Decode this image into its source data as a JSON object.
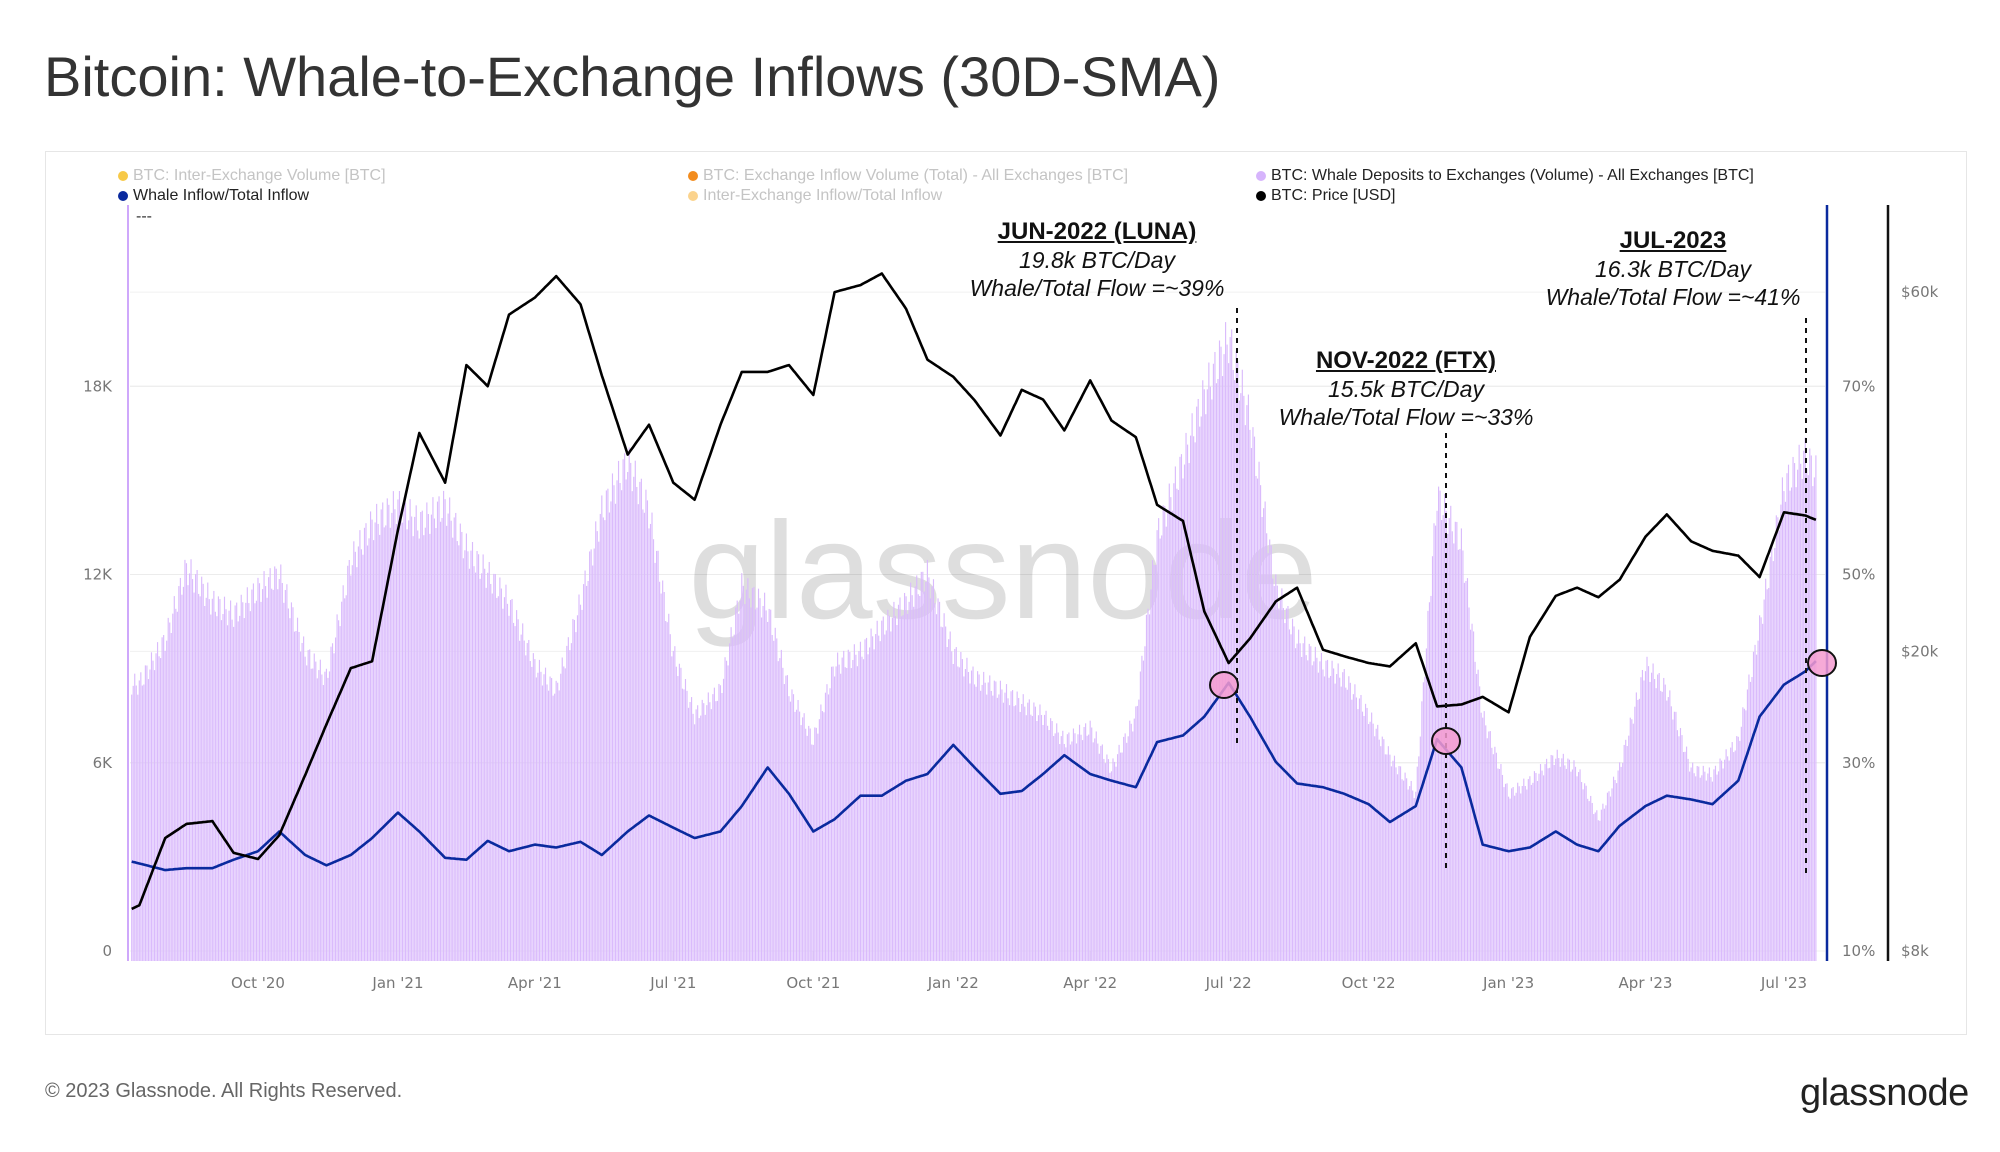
{
  "title": "Bitcoin: Whale-to-Exchange Inflows (30D-SMA)",
  "legend": [
    {
      "label": "BTC: Inter-Exchange Volume [BTC]",
      "color": "#f7c948",
      "active": false
    },
    {
      "label": "BTC: Exchange Inflow Volume (Total) - All Exchanges [BTC]",
      "color": "#f28c1e",
      "active": false
    },
    {
      "label": "BTC: Whale Deposits to Exchanges (Volume) - All Exchanges [BTC]",
      "color": "#d6b4fc",
      "active": true
    },
    {
      "label": "Whale Inflow/Total Inflow",
      "color": "#0a2a9e",
      "active": true
    },
    {
      "label": "Inter-Exchange Inflow/Total Inflow",
      "color": "#fbd38d",
      "active": false
    },
    {
      "label": "BTC: Price [USD]",
      "color": "#000000",
      "active": true
    }
  ],
  "legend_placeholder": "---",
  "watermark": "glassnode",
  "footer": "© 2023 Glassnode. All Rights Reserved.",
  "logo": "glassnode",
  "annotations": [
    {
      "heading": "JUN-2022 (LUNA)",
      "line1": "19.8k BTC/Day",
      "line2": "Whale/Total Flow =~39%"
    },
    {
      "heading": "NOV-2022 (FTX)",
      "line1": "15.5k BTC/Day",
      "line2": "Whale/Total Flow =~33%"
    },
    {
      "heading": "JUL-2023",
      "line1": "16.3k BTC/Day",
      "line2": "Whale/Total Flow =~41%"
    }
  ],
  "chart_data": {
    "type": "bar+line",
    "grid": true,
    "legend_position": "top",
    "x_tick_labels": [
      "Oct '20",
      "Jan '21",
      "Apr '21",
      "Jul '21",
      "Oct '21",
      "Jan '22",
      "Apr '22",
      "Jul '22",
      "Oct '22",
      "Jan '23",
      "Apr '23",
      "Jul '23"
    ],
    "y_left": {
      "ticks": [
        "0",
        "6K",
        "12K",
        "18K"
      ],
      "tick_values": [
        0,
        6000,
        12000,
        18000
      ],
      "range": [
        0,
        24000
      ]
    },
    "y_right_pct": {
      "ticks": [
        "10%",
        "30%",
        "50%",
        "70%"
      ],
      "tick_values": [
        10,
        30,
        50,
        70
      ],
      "range": [
        10,
        90
      ]
    },
    "y_right_price": {
      "ticks": [
        "$8k",
        "$20k",
        "$60k"
      ],
      "tick_values": [
        8000,
        20000,
        60000
      ],
      "range": [
        8000,
        80000
      ],
      "scale": "log"
    },
    "dates": [
      "2020-07-10",
      "2020-07-15",
      "2020-08-01",
      "2020-08-15",
      "2020-09-01",
      "2020-09-15",
      "2020-10-01",
      "2020-10-15",
      "2020-11-01",
      "2020-11-15",
      "2020-12-01",
      "2020-12-15",
      "2021-01-01",
      "2021-01-15",
      "2021-02-01",
      "2021-02-15",
      "2021-03-01",
      "2021-03-15",
      "2021-04-01",
      "2021-04-15",
      "2021-05-01",
      "2021-05-15",
      "2021-06-01",
      "2021-06-15",
      "2021-07-01",
      "2021-07-15",
      "2021-08-01",
      "2021-08-15",
      "2021-09-01",
      "2021-09-15",
      "2021-10-01",
      "2021-10-15",
      "2021-11-01",
      "2021-11-15",
      "2021-12-01",
      "2021-12-15",
      "2022-01-01",
      "2022-01-15",
      "2022-02-01",
      "2022-02-15",
      "2022-03-01",
      "2022-03-15",
      "2022-04-01",
      "2022-04-15",
      "2022-05-01",
      "2022-05-15",
      "2022-06-01",
      "2022-06-15",
      "2022-07-01",
      "2022-07-15",
      "2022-08-01",
      "2022-08-15",
      "2022-09-01",
      "2022-09-15",
      "2022-10-01",
      "2022-10-15",
      "2022-11-01",
      "2022-11-15",
      "2022-12-01",
      "2022-12-15",
      "2023-01-01",
      "2023-01-15",
      "2023-02-01",
      "2023-02-15",
      "2023-03-01",
      "2023-03-15",
      "2023-04-01",
      "2023-04-15",
      "2023-05-01",
      "2023-05-15",
      "2023-06-01",
      "2023-06-15",
      "2023-07-01",
      "2023-07-15",
      "2023-07-22"
    ],
    "series": [
      {
        "name": "BTC: Whale Deposits to Exchanges (Volume) - All Exchanges [BTC]",
        "type": "bar",
        "axis": "left",
        "color": "#dabbfc",
        "values": [
          8500,
          8500,
          9900,
          12200,
          11100,
          10700,
          11500,
          12000,
          9500,
          8700,
          12400,
          13600,
          14200,
          13600,
          14200,
          12800,
          12000,
          11100,
          9100,
          8300,
          11100,
          14000,
          15600,
          14000,
          9500,
          7500,
          8300,
          11600,
          10900,
          8300,
          6700,
          9100,
          9500,
          10300,
          11100,
          12000,
          9500,
          8700,
          8300,
          7900,
          7500,
          6700,
          7100,
          5800,
          7500,
          13200,
          15600,
          17700,
          19500,
          16900,
          11600,
          9900,
          9100,
          8700,
          7500,
          6200,
          5000,
          14500,
          13000,
          7500,
          5000,
          5400,
          6200,
          5800,
          4200,
          5800,
          9100,
          8300,
          5800,
          5600,
          6700,
          10300,
          14800,
          15800,
          15200
        ]
      },
      {
        "name": "Whale Inflow/Total Inflow",
        "type": "line",
        "axis": "pct",
        "color": "#0a2a9e",
        "values": [
          19.5,
          19.3,
          18.6,
          18.8,
          18.8,
          19.7,
          20.6,
          22.7,
          20.2,
          19.1,
          20.2,
          22.0,
          24.7,
          22.7,
          19.9,
          19.7,
          21.7,
          20.6,
          21.3,
          21.0,
          21.6,
          20.2,
          22.7,
          24.4,
          23.1,
          22.0,
          22.7,
          25.4,
          29.5,
          26.7,
          22.7,
          24.0,
          26.5,
          26.5,
          28.1,
          28.8,
          31.9,
          29.5,
          26.7,
          27.0,
          28.8,
          30.8,
          28.8,
          28.1,
          27.4,
          32.2,
          32.9,
          34.9,
          38.5,
          34.9,
          30.1,
          27.8,
          27.4,
          26.7,
          25.6,
          23.7,
          25.4,
          32.5,
          29.5,
          21.3,
          20.6,
          21.0,
          22.7,
          21.3,
          20.6,
          23.3,
          25.4,
          26.5,
          26.1,
          25.6,
          28.1,
          34.9,
          38.3,
          39.7,
          40.8
        ]
      },
      {
        "name": "BTC: Price [USD]",
        "type": "line",
        "axis": "price",
        "color": "#000000",
        "values": [
          9100,
          9200,
          11300,
          11800,
          11900,
          10800,
          10600,
          11400,
          13700,
          16000,
          19000,
          19400,
          29000,
          39000,
          33500,
          48000,
          45000,
          56000,
          59000,
          63000,
          57800,
          46500,
          36500,
          40000,
          33500,
          31800,
          40000,
          47000,
          47000,
          48000,
          43800,
          60000,
          61300,
          63500,
          57000,
          48800,
          46300,
          43100,
          38700,
          44500,
          43200,
          39300,
          45800,
          40500,
          38500,
          31300,
          29800,
          22600,
          19300,
          20800,
          23300,
          24300,
          20100,
          19700,
          19300,
          19100,
          20500,
          16900,
          17000,
          17400,
          16600,
          20900,
          23700,
          24300,
          23600,
          24900,
          28400,
          30400,
          28000,
          27200,
          26800,
          25100,
          30600,
          30300,
          29900
        ]
      }
    ]
  }
}
